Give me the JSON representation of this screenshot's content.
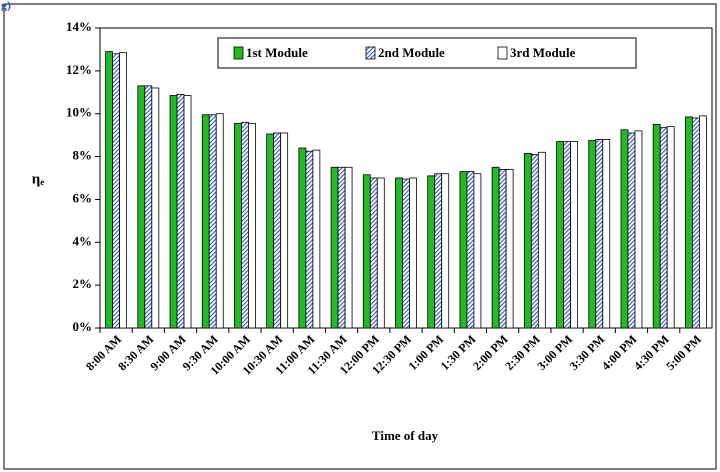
{
  "chart_data": {
    "type": "bar",
    "annotation": "g)",
    "x_label": "Time of day",
    "y_label": "ηₑ",
    "categories": [
      "8:00 AM",
      "8:30 AM",
      "9:00 AM",
      "9:30 AM",
      "10:00 AM",
      "10:30 AM",
      "11:00 AM",
      "11:30 AM",
      "12:00 PM",
      "12:30 PM",
      "1:00 PM",
      "1:30 PM",
      "2:00 PM",
      "2:30 PM",
      "3:00 PM",
      "3:30 PM",
      "4:00 PM",
      "4:30 PM",
      "5:00 PM"
    ],
    "series": [
      {
        "name": "1st Module",
        "color": "#22bb22",
        "hatch": false,
        "values": [
          12.9,
          11.3,
          10.85,
          9.95,
          9.55,
          9.05,
          8.4,
          7.5,
          7.15,
          7.0,
          7.1,
          7.3,
          7.5,
          8.15,
          8.7,
          8.75,
          9.25,
          9.5,
          9.85
        ]
      },
      {
        "name": "2nd Module",
        "color": "#3355cc",
        "hatch": true,
        "values": [
          12.8,
          11.3,
          10.9,
          9.95,
          9.6,
          9.1,
          8.25,
          7.5,
          7.0,
          6.95,
          7.2,
          7.3,
          7.4,
          8.1,
          8.7,
          8.8,
          9.1,
          9.35,
          9.8
        ]
      },
      {
        "name": "3rd Module",
        "color": "#ffffff",
        "hatch": false,
        "values": [
          12.85,
          11.2,
          10.85,
          10.0,
          9.55,
          9.1,
          8.3,
          7.5,
          7.0,
          7.0,
          7.2,
          7.2,
          7.4,
          8.2,
          8.7,
          8.8,
          9.2,
          9.4,
          9.9
        ]
      }
    ],
    "ylim": [
      0,
      14
    ],
    "yticks": [
      {
        "value": 0,
        "label": "0%"
      },
      {
        "value": 2,
        "label": "2%"
      },
      {
        "value": 4,
        "label": "4%"
      },
      {
        "value": 6,
        "label": "6%"
      },
      {
        "value": 8,
        "label": "8%"
      },
      {
        "value": 10,
        "label": "10%"
      },
      {
        "value": 12,
        "label": "12%"
      },
      {
        "value": 14,
        "label": "14%"
      }
    ],
    "grid": false,
    "legend": "top"
  }
}
